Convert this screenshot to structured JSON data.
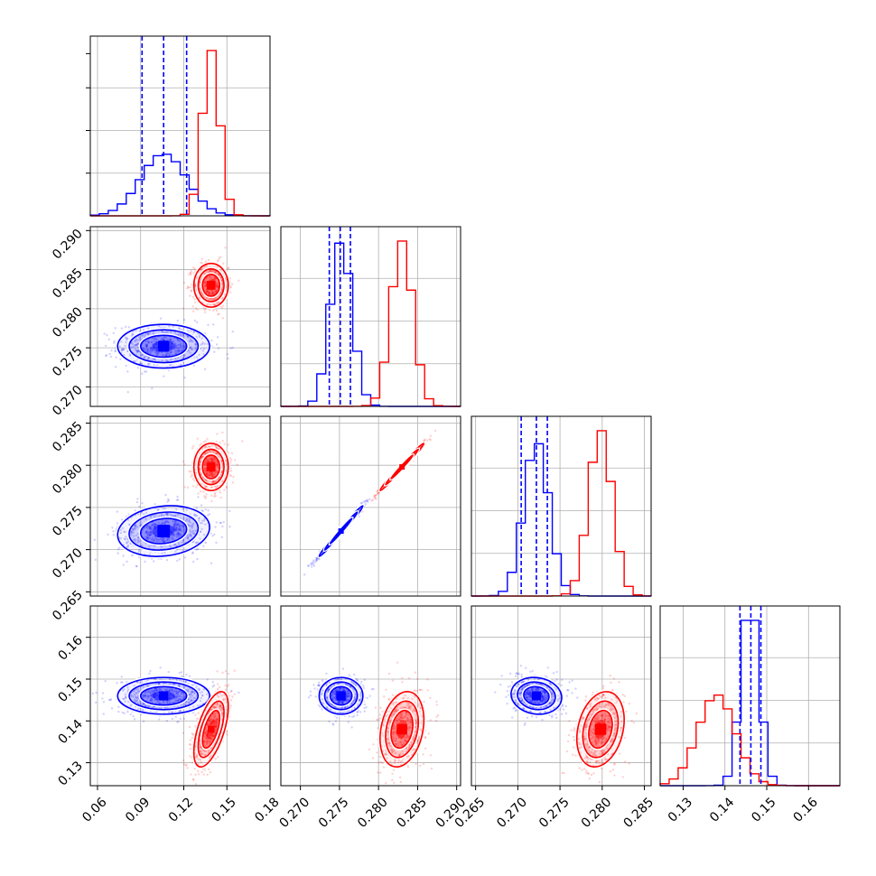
{
  "colors": {
    "blue": "#0000ff",
    "red": "#ff0000",
    "grid": "#b0b0b0",
    "frame": "#000000"
  },
  "chart_data": {
    "type": "corner",
    "grid": true,
    "series": [
      {
        "color": "#0000ff",
        "params": [
          {
            "mean": 0.106,
            "sd": 0.016,
            "quantiles": [
              0.091,
              0.106,
              0.122
            ]
          },
          {
            "mean": 0.2752,
            "sd": 0.0014,
            "quantiles": [
              0.2737,
              0.2751,
              0.2764
            ]
          },
          {
            "mean": 0.2722,
            "sd": 0.0015,
            "quantiles": [
              0.2704,
              0.2722,
              0.2735
            ]
          },
          {
            "mean": 0.146,
            "sd": 0.0022,
            "quantiles": [
              0.1436,
              0.1462,
              0.1486
            ]
          }
        ],
        "correlations": [
          [
            0,
            2,
            0.15
          ],
          [
            1,
            2,
            0.99
          ],
          [
            2,
            3,
            -0.1
          ]
        ]
      },
      {
        "color": "#ff0000",
        "params": [
          {
            "mean": 0.139,
            "sd": 0.006
          },
          {
            "mean": 0.283,
            "sd": 0.0014
          },
          {
            "mean": 0.2798,
            "sd": 0.0014
          },
          {
            "mean": 0.138,
            "sd": 0.0045
          }
        ],
        "correlations": [
          [
            0,
            3,
            0.6
          ],
          [
            1,
            2,
            0.99
          ],
          [
            1,
            3,
            0.25
          ],
          [
            2,
            3,
            0.25
          ]
        ]
      }
    ],
    "axes": [
      {
        "range": [
          0.055,
          0.18
        ],
        "ticks": [
          "0.06",
          "0.09",
          "0.12",
          "0.15",
          "0.18"
        ]
      },
      {
        "range": [
          0.2675,
          0.2905
        ],
        "ticks": [
          "0.270",
          "0.275",
          "0.280",
          "0.285",
          "0.290"
        ]
      },
      {
        "range": [
          0.2645,
          0.2858
        ],
        "ticks": [
          "0.265",
          "0.270",
          "0.275",
          "0.280",
          "0.285"
        ]
      },
      {
        "range": [
          0.1245,
          0.1675
        ],
        "ticks": [
          "0.13",
          "0.14",
          "0.15",
          "0.16"
        ]
      }
    ]
  }
}
